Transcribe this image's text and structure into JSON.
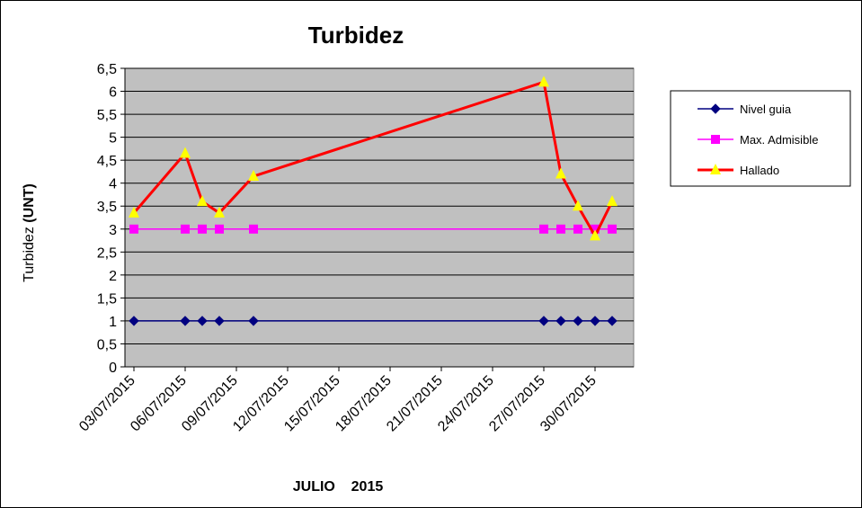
{
  "chart_data": {
    "type": "line",
    "title": "Turbidez",
    "xlabel": "JULIO    2015",
    "ylabel_prefix": "Turbidez ",
    "ylabel_unit": "(UNT)",
    "ylim": [
      0,
      6.5
    ],
    "yticks": [
      "0",
      "0,5",
      "1",
      "1,5",
      "2",
      "2,5",
      "3",
      "3,5",
      "4",
      "4,5",
      "5",
      "5,5",
      "6",
      "6,5"
    ],
    "x_start": "2015-07-03",
    "x_end": "2015-08-01",
    "xticks": [
      "03/07/2015",
      "06/07/2015",
      "09/07/2015",
      "12/07/2015",
      "15/07/2015",
      "18/07/2015",
      "21/07/2015",
      "24/07/2015",
      "27/07/2015",
      "30/07/2015"
    ],
    "grid": true,
    "legend_position": "right",
    "plot_background": "#c0c0c0",
    "series": [
      {
        "name": "Nivel guia",
        "color": "#000080",
        "marker": "diamond",
        "points": [
          [
            "2015-07-03",
            1
          ],
          [
            "2015-07-06",
            1
          ],
          [
            "2015-07-07",
            1
          ],
          [
            "2015-07-08",
            1
          ],
          [
            "2015-07-10",
            1
          ],
          [
            "2015-07-27",
            1
          ],
          [
            "2015-07-28",
            1
          ],
          [
            "2015-07-29",
            1
          ],
          [
            "2015-07-30",
            1
          ],
          [
            "2015-07-31",
            1
          ]
        ]
      },
      {
        "name": "Max. Admisible",
        "color": "#ff00ff",
        "marker": "square",
        "points": [
          [
            "2015-07-03",
            3
          ],
          [
            "2015-07-06",
            3
          ],
          [
            "2015-07-07",
            3
          ],
          [
            "2015-07-08",
            3
          ],
          [
            "2015-07-10",
            3
          ],
          [
            "2015-07-27",
            3
          ],
          [
            "2015-07-28",
            3
          ],
          [
            "2015-07-29",
            3
          ],
          [
            "2015-07-30",
            3
          ],
          [
            "2015-07-31",
            3
          ]
        ]
      },
      {
        "name": "Hallado",
        "color": "#ff0000",
        "marker": "triangle",
        "marker_color": "#ffff00",
        "points": [
          [
            "2015-07-03",
            3.35
          ],
          [
            "2015-07-06",
            4.65
          ],
          [
            "2015-07-07",
            3.6
          ],
          [
            "2015-07-08",
            3.35
          ],
          [
            "2015-07-10",
            4.15
          ],
          [
            "2015-07-27",
            6.2
          ],
          [
            "2015-07-28",
            4.2
          ],
          [
            "2015-07-29",
            3.5
          ],
          [
            "2015-07-30",
            2.85
          ],
          [
            "2015-07-31",
            3.6
          ]
        ]
      }
    ]
  }
}
